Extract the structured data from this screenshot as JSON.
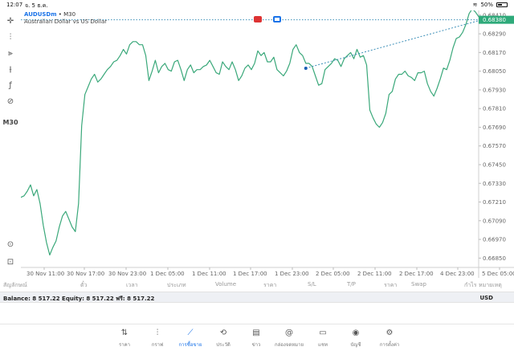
{
  "status": {
    "time": "12:07",
    "date": "จ. 5 ธ.ค.",
    "battery": "50%"
  },
  "chart": {
    "symbol": "AUDUSDm",
    "timeframe_suffix": "• M30",
    "description": "Australian Dollar vs US Dollar",
    "timeframe": "M30",
    "current_price": "0.68380",
    "colors": {
      "line": "#3aa87a",
      "dotted": "#3d8fb8",
      "price_tag": "#2eaa7a",
      "accent": "#1a73e8"
    }
  },
  "chart_data": {
    "type": "line",
    "ylim": [
      0.6679,
      0.6844
    ],
    "y_ticks": [
      "0.68410",
      "0.68290",
      "0.68170",
      "0.68050",
      "0.67930",
      "0.67810",
      "0.67690",
      "0.67570",
      "0.67450",
      "0.67330",
      "0.67210",
      "0.67090",
      "0.66970",
      "0.66850"
    ],
    "x_ticks": [
      "30 Nov 11:00",
      "30 Nov 17:00",
      "30 Nov 23:00",
      "1 Dec 05:00",
      "1 Dec 11:00",
      "1 Dec 17:00",
      "1 Dec 23:00",
      "2 Dec 05:00",
      "2 Dec 11:00",
      "2 Dec 17:00",
      "4 Dec 23:00",
      "5 Dec 05:00"
    ],
    "series": [
      {
        "values": [
          0.6724,
          0.6725,
          0.6728,
          0.6732,
          0.6725,
          0.6729,
          0.672,
          0.6706,
          0.6695,
          0.6687,
          0.6692,
          0.6696,
          0.6705,
          0.6712,
          0.6715,
          0.671,
          0.6705,
          0.6702,
          0.672,
          0.677,
          0.679,
          0.6795,
          0.68,
          0.6803,
          0.6798,
          0.68,
          0.6803,
          0.6806,
          0.6808,
          0.6811,
          0.6812,
          0.6815,
          0.6819,
          0.6816,
          0.6822,
          0.6824,
          0.6824,
          0.6822,
          0.6822,
          0.6815,
          0.6799,
          0.6805,
          0.6812,
          0.6804,
          0.6808,
          0.681,
          0.6806,
          0.6805,
          0.6811,
          0.6812,
          0.6806,
          0.6799,
          0.6806,
          0.6809,
          0.6804,
          0.6806,
          0.6806,
          0.6808,
          0.6809,
          0.6812,
          0.6808,
          0.6804,
          0.6803,
          0.6811,
          0.6808,
          0.6806,
          0.6811,
          0.6806,
          0.6799,
          0.6802,
          0.6807,
          0.6809,
          0.6806,
          0.681,
          0.6818,
          0.6815,
          0.6817,
          0.6811,
          0.6811,
          0.6814,
          0.6806,
          0.6804,
          0.6802,
          0.6805,
          0.681,
          0.6819,
          0.6822,
          0.6817,
          0.6815,
          0.681,
          0.681,
          0.6808,
          0.6802,
          0.6796,
          0.6797,
          0.6806,
          0.6808,
          0.681,
          0.6813,
          0.6812,
          0.6808,
          0.6813,
          0.6815,
          0.6817,
          0.6813,
          0.6819,
          0.6814,
          0.6815,
          0.6809,
          0.678,
          0.6775,
          0.6771,
          0.6769,
          0.6772,
          0.6778,
          0.679,
          0.6792,
          0.68,
          0.6803,
          0.6803,
          0.6805,
          0.6802,
          0.6801,
          0.6799,
          0.6804,
          0.6804,
          0.6805,
          0.6797,
          0.6792,
          0.6789,
          0.6794,
          0.68,
          0.6807,
          0.6806,
          0.6812,
          0.682,
          0.6826,
          0.6827,
          0.683,
          0.6835,
          0.6842,
          0.6845,
          0.6843,
          0.684,
          0.6838
        ]
      }
    ]
  },
  "columns": [
    "สัญลักษณ์",
    "ตั๋ว",
    "เวลา",
    "ประเภท",
    "Volume",
    "ราคา",
    "S/L",
    "T/P",
    "ราคา",
    "Swap",
    "กำไร",
    "หมายเหตุ"
  ],
  "balance": {
    "text": "Balance: 8 517.22  Equity: 8 517.22  ฟรี: 8 517.22",
    "currency": "USD"
  },
  "nav": [
    {
      "label": "ราคา",
      "icon": "⇅"
    },
    {
      "label": "กราฟ",
      "icon": "⫶"
    },
    {
      "label": "การซื้อขาย",
      "icon": "⟋"
    },
    {
      "label": "ประวัติ",
      "icon": "⟲"
    },
    {
      "label": "ข่าว",
      "icon": "▤"
    },
    {
      "label": "กล่องจดหมาย",
      "icon": "@"
    },
    {
      "label": "แชท",
      "icon": "▭"
    },
    {
      "label": "บัญชี",
      "icon": "◉"
    },
    {
      "label": "การตั้งค่า",
      "icon": "⚙"
    }
  ]
}
